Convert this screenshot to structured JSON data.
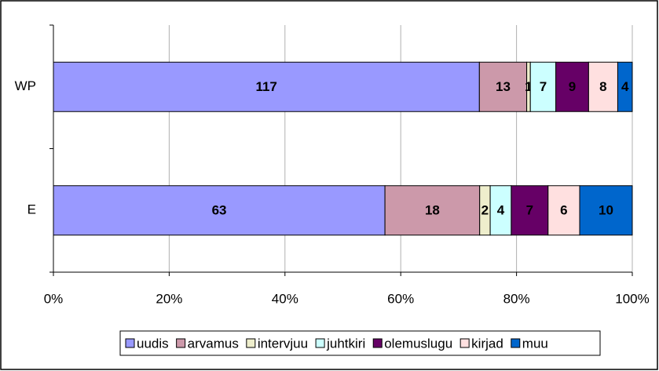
{
  "chart_data": {
    "type": "bar",
    "orientation": "horizontal",
    "stacking": "percent",
    "categories": [
      "WP",
      "E"
    ],
    "series": [
      {
        "name": "uudis",
        "color": "#9999ff",
        "values": [
          117,
          63
        ]
      },
      {
        "name": "arvamus",
        "color": "#cc99aa",
        "values": [
          13,
          18
        ]
      },
      {
        "name": "intervjuu",
        "color": "#eeeecc",
        "values": [
          1,
          2
        ]
      },
      {
        "name": "juhtkiri",
        "color": "#ccffff",
        "values": [
          7,
          4
        ]
      },
      {
        "name": "olemuslugu",
        "color": "#660066",
        "values": [
          9,
          7
        ]
      },
      {
        "name": "kirjad",
        "color": "#ffe0e0",
        "values": [
          8,
          6
        ]
      },
      {
        "name": "muu",
        "color": "#0066cc",
        "values": [
          4,
          10
        ]
      }
    ],
    "xlim": [
      0,
      100
    ],
    "xticks": [
      {
        "value": 0,
        "label": "0%"
      },
      {
        "value": 20,
        "label": "20%"
      },
      {
        "value": 40,
        "label": "40%"
      },
      {
        "value": 60,
        "label": "60%"
      },
      {
        "value": 80,
        "label": "80%"
      },
      {
        "value": 100,
        "label": "100%"
      }
    ],
    "grid": true,
    "legend": "bottom"
  }
}
